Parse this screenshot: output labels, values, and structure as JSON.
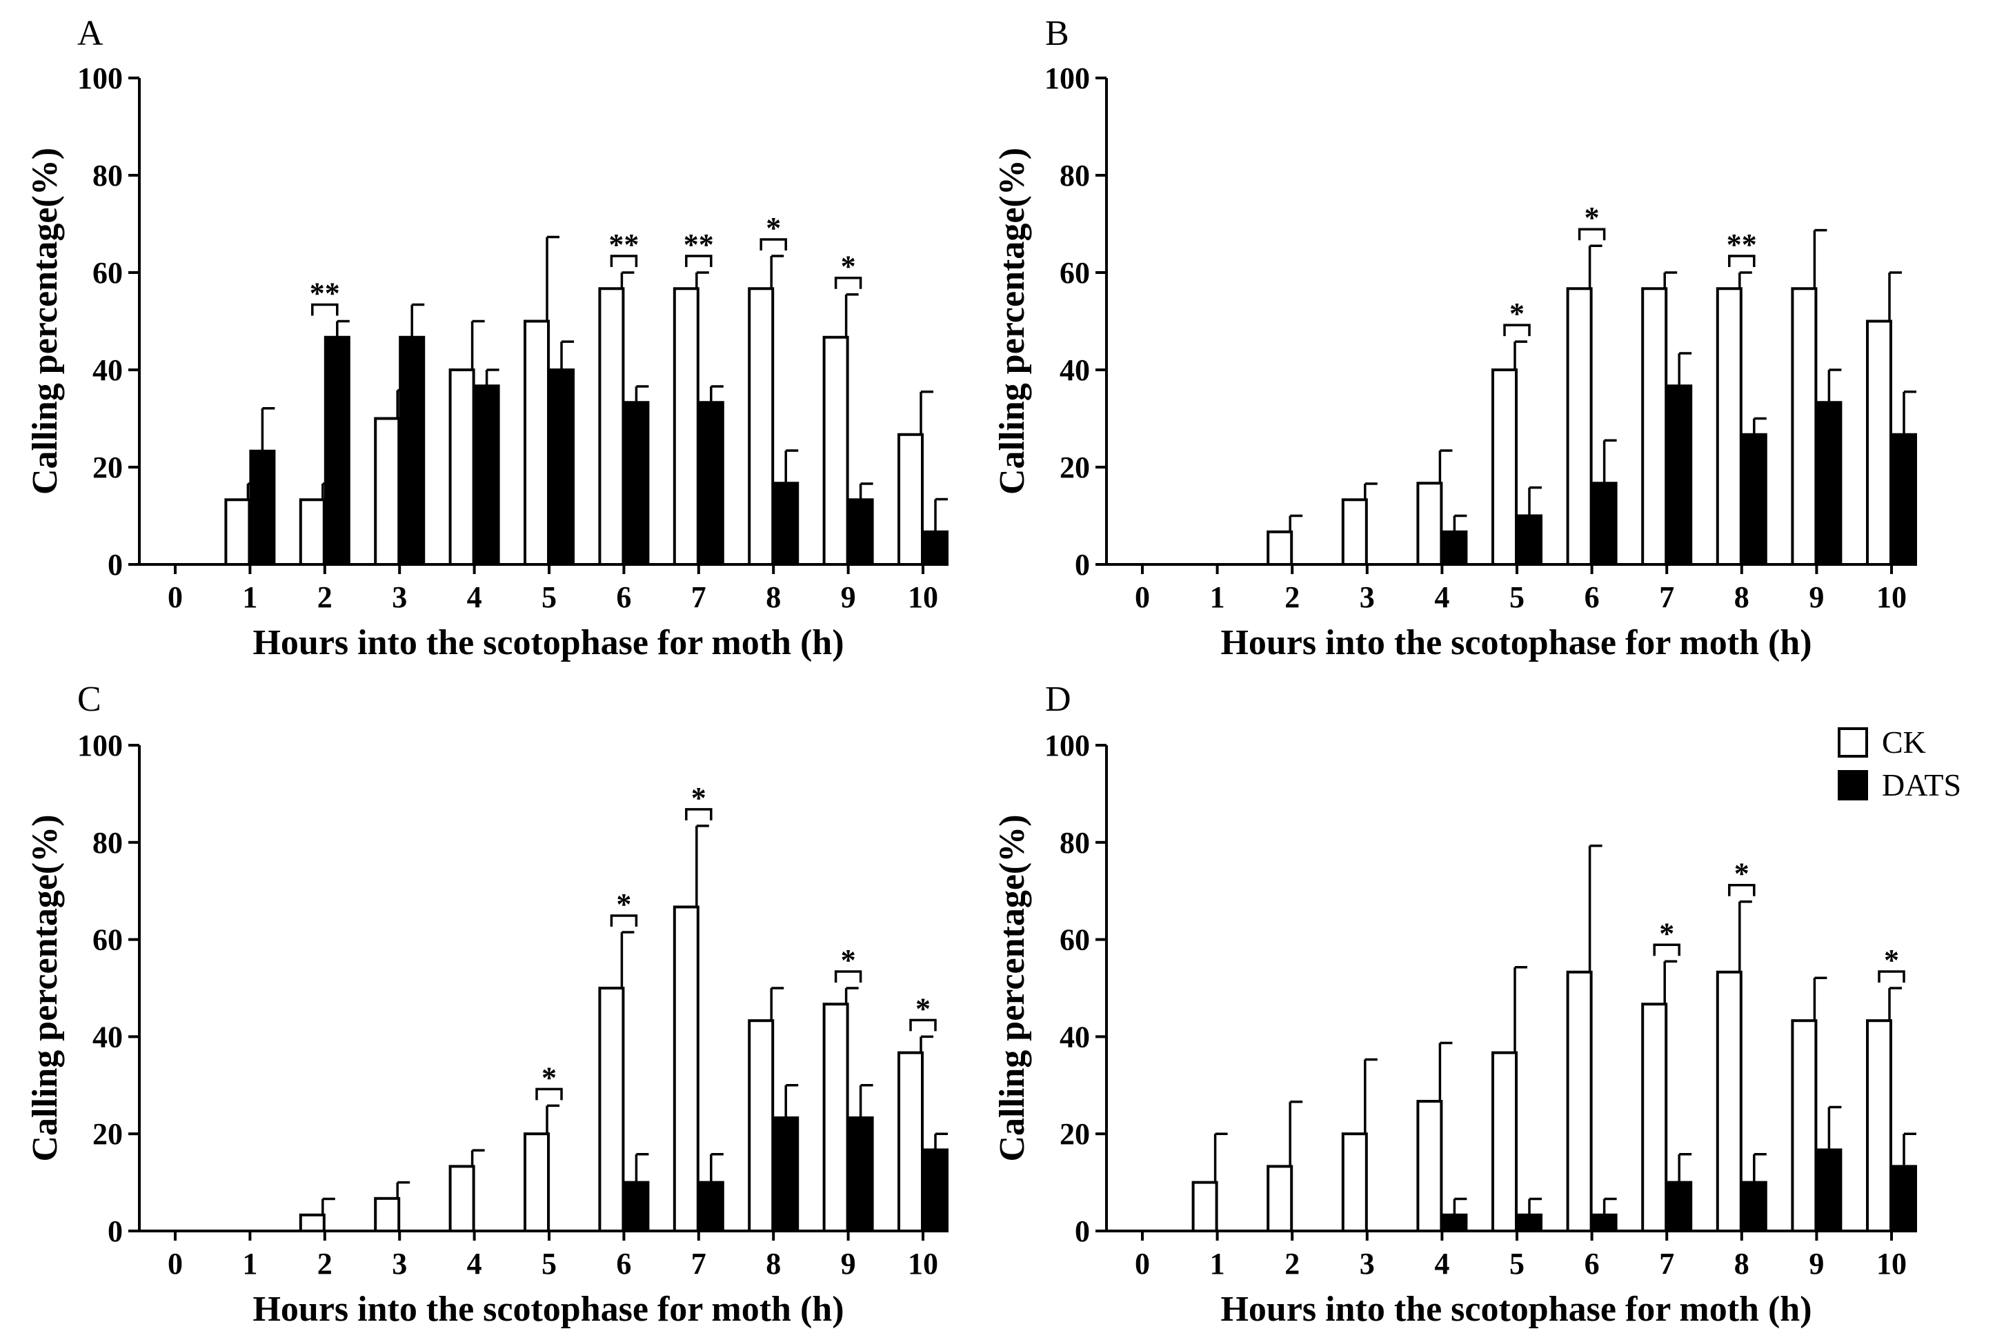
{
  "legend": {
    "items": [
      {
        "label": "CK",
        "color": "#ffffff"
      },
      {
        "label": "DATS",
        "color": "#000000"
      }
    ]
  },
  "chart_data": [
    {
      "panel": "A",
      "type": "bar",
      "xlabel": "Hours into the scotophase for moth (h)",
      "ylabel": "Calling percentage(%)",
      "ylim": [
        0,
        100
      ],
      "yticks": [
        "0",
        "20",
        "40",
        "60",
        "80",
        "100"
      ],
      "categories": [
        "0",
        "1",
        "2",
        "3",
        "4",
        "5",
        "6",
        "7",
        "8",
        "9",
        "10"
      ],
      "series": [
        {
          "name": "CK",
          "values": [
            0,
            13.3,
            13.3,
            30,
            40,
            50,
            56.7,
            56.7,
            56.7,
            46.7,
            26.7
          ],
          "errors": [
            0,
            3.3,
            3.3,
            5.8,
            10,
            17.3,
            3.3,
            3.3,
            6.7,
            8.8,
            8.8
          ]
        },
        {
          "name": "DATS",
          "values": [
            0,
            23.3,
            46.7,
            46.7,
            36.7,
            40,
            33.3,
            33.3,
            16.7,
            13.3,
            6.7
          ],
          "errors": [
            0,
            8.8,
            3.3,
            6.7,
            3.3,
            5.8,
            3.3,
            3.3,
            6.7,
            3.3,
            6.7
          ]
        }
      ],
      "significance": [
        {
          "category": "2",
          "label": "**"
        },
        {
          "category": "6",
          "label": "**"
        },
        {
          "category": "7",
          "label": "**"
        },
        {
          "category": "8",
          "label": "*"
        },
        {
          "category": "9",
          "label": "*"
        }
      ]
    },
    {
      "panel": "B",
      "type": "bar",
      "xlabel": "Hours into the scotophase for moth (h)",
      "ylabel": "Calling percentage(%)",
      "ylim": [
        0,
        100
      ],
      "yticks": [
        "0",
        "20",
        "40",
        "60",
        "80",
        "100"
      ],
      "categories": [
        "0",
        "1",
        "2",
        "3",
        "4",
        "5",
        "6",
        "7",
        "8",
        "9",
        "10"
      ],
      "series": [
        {
          "name": "CK",
          "values": [
            0,
            0,
            6.7,
            13.3,
            16.7,
            40,
            56.7,
            56.7,
            56.7,
            56.7,
            50
          ],
          "errors": [
            0,
            0,
            3.3,
            3.3,
            6.7,
            5.8,
            8.8,
            3.3,
            3.3,
            12,
            10
          ]
        },
        {
          "name": "DATS",
          "values": [
            0,
            0,
            0,
            0,
            6.7,
            10,
            16.7,
            36.7,
            26.7,
            33.3,
            26.7
          ],
          "errors": [
            0,
            0,
            0,
            0,
            3.3,
            5.8,
            8.8,
            6.7,
            3.3,
            6.7,
            8.8
          ]
        }
      ],
      "significance": [
        {
          "category": "5",
          "label": "*"
        },
        {
          "category": "6",
          "label": "*"
        },
        {
          "category": "8",
          "label": "**"
        }
      ]
    },
    {
      "panel": "C",
      "type": "bar",
      "xlabel": "Hours into the scotophase for moth (h)",
      "ylabel": "Calling percentage(%)",
      "ylim": [
        0,
        100
      ],
      "yticks": [
        "0",
        "20",
        "40",
        "60",
        "80",
        "100"
      ],
      "categories": [
        "0",
        "1",
        "2",
        "3",
        "4",
        "5",
        "6",
        "7",
        "8",
        "9",
        "10"
      ],
      "series": [
        {
          "name": "CK",
          "values": [
            0,
            0,
            3.3,
            6.7,
            13.3,
            20,
            50,
            66.7,
            43.3,
            46.7,
            36.7
          ],
          "errors": [
            0,
            0,
            3.3,
            3.3,
            3.3,
            5.8,
            11.5,
            16.7,
            6.7,
            3.3,
            3.3
          ]
        },
        {
          "name": "DATS",
          "values": [
            0,
            0,
            0,
            0,
            0,
            0,
            10,
            10,
            23.3,
            23.3,
            16.7
          ],
          "errors": [
            0,
            0,
            0,
            0,
            0,
            0,
            5.8,
            5.8,
            6.7,
            6.7,
            3.3
          ]
        }
      ],
      "significance": [
        {
          "category": "5",
          "label": "*"
        },
        {
          "category": "6",
          "label": "*"
        },
        {
          "category": "7",
          "label": "*"
        },
        {
          "category": "9",
          "label": "*"
        },
        {
          "category": "10",
          "label": "*"
        }
      ]
    },
    {
      "panel": "D",
      "type": "bar",
      "xlabel": "Hours into the scotophase for moth (h)",
      "ylabel": "Calling percentage(%)",
      "ylim": [
        0,
        100
      ],
      "yticks": [
        "0",
        "20",
        "40",
        "60",
        "80",
        "100"
      ],
      "categories": [
        "0",
        "1",
        "2",
        "3",
        "4",
        "5",
        "6",
        "7",
        "8",
        "9",
        "10"
      ],
      "series": [
        {
          "name": "CK",
          "values": [
            0,
            10,
            13.3,
            20,
            26.7,
            36.7,
            53.3,
            46.7,
            53.3,
            43.3,
            43.3
          ],
          "errors": [
            0,
            10,
            13.3,
            15.3,
            12,
            17.6,
            26,
            8.8,
            14.5,
            8.8,
            6.7
          ]
        },
        {
          "name": "DATS",
          "values": [
            0,
            0,
            0,
            0,
            3.3,
            3.3,
            3.3,
            10,
            10,
            16.7,
            13.3
          ],
          "errors": [
            0,
            0,
            0,
            0,
            3.3,
            3.3,
            3.3,
            5.8,
            5.8,
            8.8,
            6.7
          ]
        }
      ],
      "significance": [
        {
          "category": "7",
          "label": "*"
        },
        {
          "category": "8",
          "label": "*"
        },
        {
          "category": "10",
          "label": "*"
        }
      ]
    }
  ]
}
